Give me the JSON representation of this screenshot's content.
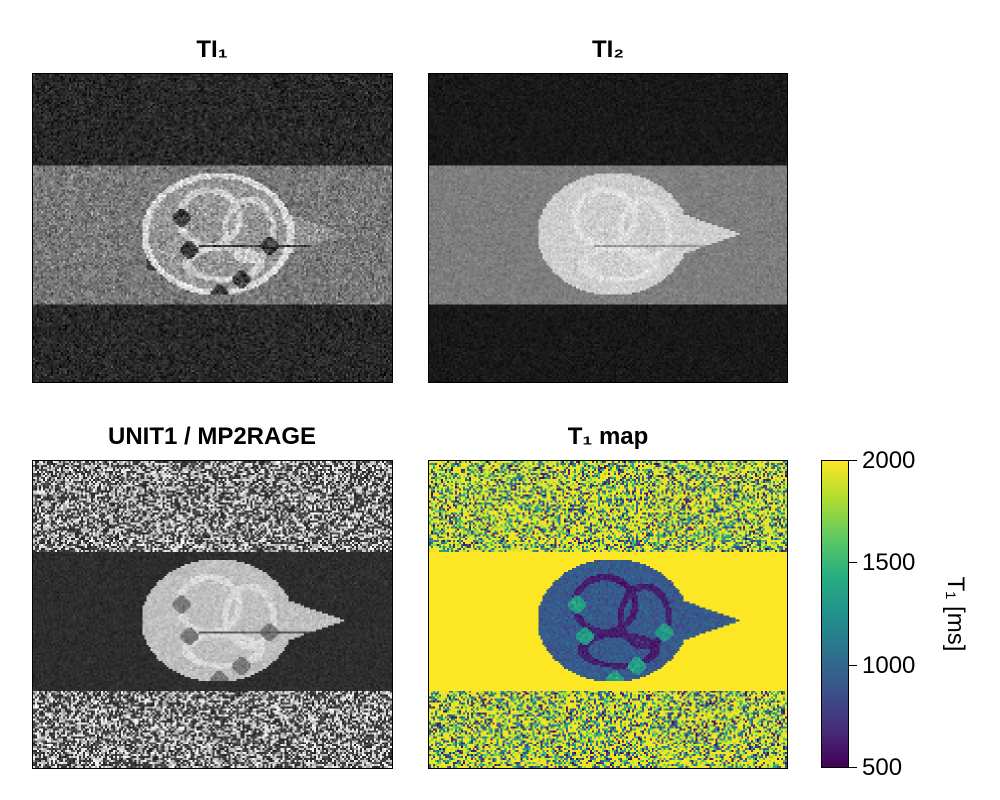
{
  "panels": [
    {
      "id": "ti1",
      "title": "TI₁"
    },
    {
      "id": "ti2",
      "title": "TI₂"
    },
    {
      "id": "unit1",
      "title": "UNIT1 / MP2RAGE"
    },
    {
      "id": "t1map",
      "title": "T₁ map"
    }
  ],
  "colorbar": {
    "label": "T₁ [ms]",
    "colormap": "viridis",
    "range": [
      500,
      2000
    ],
    "ticks": [
      "2000",
      "1500",
      "1000",
      "500"
    ],
    "colors": [
      "#440154",
      "#472d7b",
      "#3b528b",
      "#2c728e",
      "#21918c",
      "#28ae80",
      "#5ec962",
      "#addc30",
      "#fde725"
    ]
  }
}
